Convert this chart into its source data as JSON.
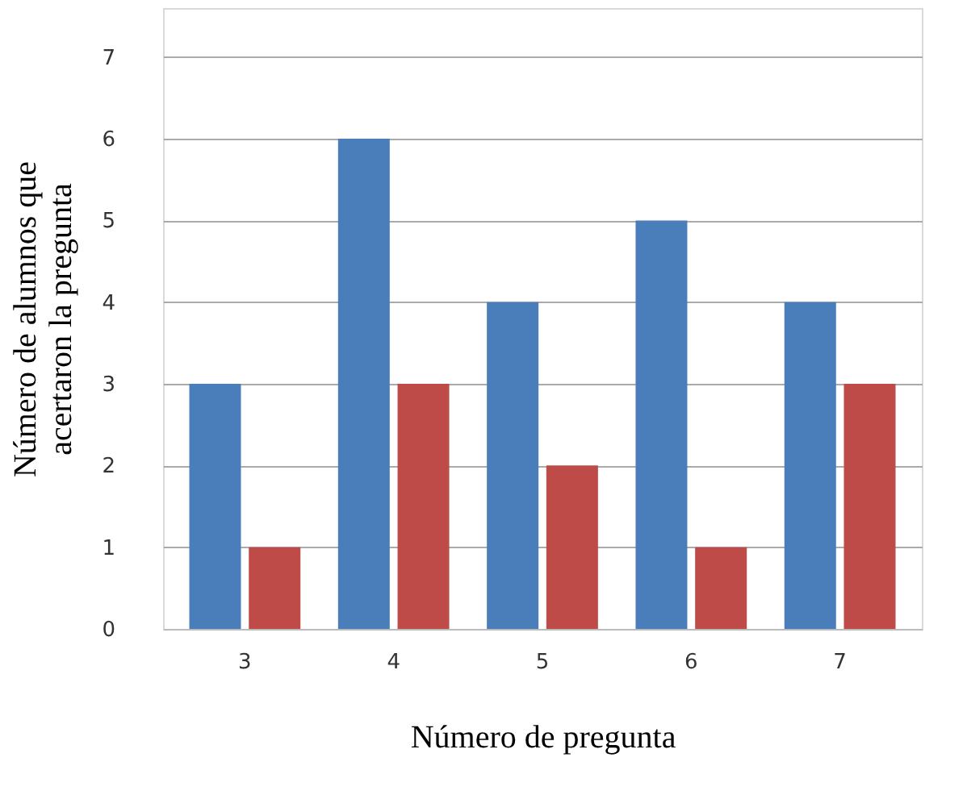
{
  "chart_data": {
    "type": "bar",
    "xlabel": "Número de pregunta",
    "ylabel": "Número de alumnos que acertaron la pregunta",
    "categories": [
      "3",
      "4",
      "5",
      "6",
      "7"
    ],
    "series": [
      {
        "color": "#4a7ebb",
        "values": [
          3,
          6,
          4,
          5,
          4
        ]
      },
      {
        "color": "#be4b48",
        "values": [
          1,
          3,
          2,
          1,
          3
        ]
      }
    ],
    "ylim": [
      0,
      7.6
    ],
    "yticks": [
      0,
      1,
      2,
      3,
      4,
      5,
      6,
      7
    ],
    "grid": "y"
  }
}
